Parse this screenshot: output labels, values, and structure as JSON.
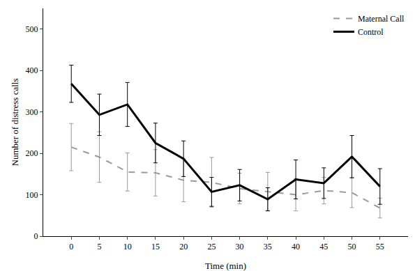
{
  "chart_data": {
    "type": "line",
    "x_label": "Time (min)",
    "y_label": "Number of distress calls",
    "x": [
      0,
      5,
      10,
      15,
      20,
      25,
      30,
      35,
      40,
      45,
      50,
      55
    ],
    "series": [
      {
        "name": "Maternal Call",
        "color": "#9a9a9a",
        "line_style": "dashed",
        "values": [
          215,
          191,
          155,
          153,
          135,
          130,
          115,
          108,
          100,
          110,
          105,
          68
        ],
        "error": [
          57,
          61,
          46,
          56,
          52,
          60,
          37,
          46,
          39,
          32,
          36,
          24
        ]
      },
      {
        "name": "Control",
        "color": "#000000",
        "line_style": "solid",
        "values": [
          368,
          293,
          318,
          225,
          187,
          107,
          123,
          89,
          137,
          128,
          192,
          120
        ],
        "error": [
          45,
          50,
          53,
          48,
          43,
          35,
          38,
          28,
          47,
          37,
          51,
          43
        ]
      }
    ],
    "xlim": [
      -5,
      60
    ],
    "xticks": [
      0,
      5,
      10,
      15,
      20,
      25,
      30,
      35,
      40,
      45,
      50,
      55
    ],
    "ylim": [
      0,
      550
    ],
    "yticks": [
      0,
      100,
      200,
      300,
      400,
      500
    ],
    "grid": false,
    "legend": "top right"
  }
}
